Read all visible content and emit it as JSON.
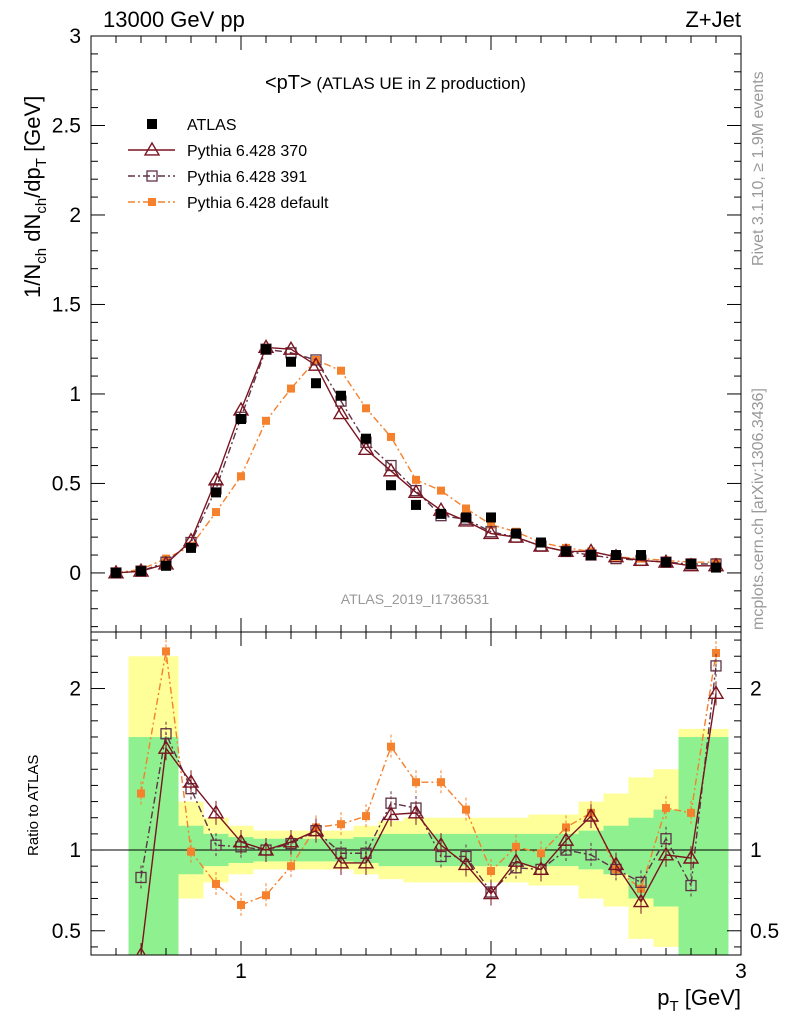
{
  "header": {
    "energy_label": "13000 GeV pp",
    "process_label": "Z+Jet",
    "plot_title_main": "<pT>",
    "plot_title_sub": " (ATLAS UE in Z production)",
    "analysis_id": "ATLAS_2019_I1736531",
    "rivet_label": "Rivet 3.1.10, ≥ 1.9M events",
    "source_label": "mcplots.cern.ch [arXiv:1306.3436]"
  },
  "colors": {
    "atlas": "#000000",
    "p370": "#7a1420",
    "p391": "#5e3346",
    "pdef": "#f5812c",
    "band_inner": "#8ff08f",
    "band_outer": "#ffff99"
  },
  "chart_data": [
    {
      "type": "scatter",
      "title": "<pT> (ATLAS UE in Z production)",
      "xlabel": "pT [GeV]",
      "ylabel": "1/Nch dNch/dpT [GeV]",
      "xlim": [
        0.4,
        3.0
      ],
      "ylim": [
        -0.33,
        3.0
      ],
      "yticks": [
        0,
        0.5,
        1,
        1.5,
        2,
        2.5,
        3
      ],
      "ytick_labels": [
        "0",
        "0.5",
        "1",
        "1.5",
        "2",
        "2.5",
        "3"
      ],
      "legend_position": "top-left",
      "x": [
        0.5,
        0.6,
        0.7,
        0.8,
        0.9,
        1.0,
        1.1,
        1.2,
        1.3,
        1.4,
        1.5,
        1.6,
        1.7,
        1.8,
        1.9,
        2.0,
        2.1,
        2.2,
        2.3,
        2.4,
        2.5,
        2.6,
        2.7,
        2.8,
        2.9
      ],
      "series": [
        {
          "name": "ATLAS",
          "key": "atlas",
          "values": [
            0.0,
            0.01,
            0.04,
            0.14,
            0.45,
            0.86,
            1.25,
            1.18,
            1.06,
            0.99,
            0.75,
            0.49,
            0.38,
            0.33,
            0.31,
            0.31,
            0.22,
            0.17,
            0.12,
            0.1,
            0.1,
            0.1,
            0.06,
            0.05,
            0.03
          ]
        },
        {
          "name": "Pythia 6.428 370",
          "key": "p370",
          "values": [
            0.0,
            0.01,
            0.05,
            0.18,
            0.52,
            0.91,
            1.26,
            1.25,
            1.16,
            0.89,
            0.69,
            0.57,
            0.45,
            0.35,
            0.29,
            0.22,
            0.2,
            0.15,
            0.12,
            0.12,
            0.09,
            0.07,
            0.06,
            0.04,
            0.04
          ]
        },
        {
          "name": "Pythia 6.428 391",
          "key": "p391",
          "values": [
            0.0,
            0.01,
            0.06,
            0.17,
            0.47,
            0.87,
            1.25,
            1.23,
            1.19,
            0.96,
            0.73,
            0.6,
            0.46,
            0.32,
            0.3,
            0.23,
            0.2,
            0.15,
            0.12,
            0.1,
            0.08,
            0.07,
            0.06,
            0.05,
            0.05
          ]
        },
        {
          "name": "Pythia 6.428 default",
          "key": "pdef",
          "values": [
            0.0,
            0.02,
            0.08,
            0.15,
            0.34,
            0.54,
            0.85,
            1.03,
            1.19,
            1.13,
            0.92,
            0.76,
            0.52,
            0.46,
            0.36,
            0.27,
            0.23,
            0.17,
            0.14,
            0.12,
            0.09,
            0.08,
            0.07,
            0.06,
            0.06
          ]
        }
      ]
    },
    {
      "type": "scatter",
      "xlabel": "pT [GeV]",
      "ylabel": "Ratio to ATLAS",
      "xlim": [
        0.4,
        3.0
      ],
      "ylim": [
        0.35,
        2.35
      ],
      "yticks": [
        0.5,
        1,
        2
      ],
      "ytick_labels": [
        "0.5",
        "1",
        "2"
      ],
      "xticks": [
        1,
        2,
        3
      ],
      "xtick_labels": [
        "1",
        "2",
        "3"
      ],
      "x": [
        0.6,
        0.7,
        0.8,
        0.9,
        1.0,
        1.1,
        1.2,
        1.3,
        1.4,
        1.5,
        1.6,
        1.7,
        1.8,
        1.9,
        2.0,
        2.1,
        2.2,
        2.3,
        2.4,
        2.5,
        2.6,
        2.7,
        2.8,
        2.9
      ],
      "band_edges": [
        0.55,
        0.65,
        0.75,
        0.85,
        0.95,
        1.05,
        1.15,
        1.25,
        1.35,
        1.45,
        1.55,
        1.65,
        1.75,
        1.85,
        1.95,
        2.05,
        2.15,
        2.25,
        2.35,
        2.45,
        2.55,
        2.65,
        2.75,
        2.85,
        2.95
      ],
      "band_inner": [
        [
          0.3,
          1.7
        ],
        [
          0.3,
          1.7
        ],
        [
          0.85,
          1.15
        ],
        [
          0.9,
          1.1
        ],
        [
          0.92,
          1.08
        ],
        [
          0.93,
          1.07
        ],
        [
          0.93,
          1.07
        ],
        [
          0.93,
          1.07
        ],
        [
          0.93,
          1.07
        ],
        [
          0.92,
          1.08
        ],
        [
          0.9,
          1.1
        ],
        [
          0.9,
          1.1
        ],
        [
          0.9,
          1.1
        ],
        [
          0.9,
          1.1
        ],
        [
          0.9,
          1.1
        ],
        [
          0.9,
          1.1
        ],
        [
          0.9,
          1.1
        ],
        [
          0.9,
          1.1
        ],
        [
          0.88,
          1.12
        ],
        [
          0.85,
          1.15
        ],
        [
          0.7,
          1.2
        ],
        [
          0.65,
          1.25
        ],
        [
          0.3,
          1.7
        ],
        [
          0.3,
          1.7
        ]
      ],
      "band_outer": [
        [
          0.3,
          2.2
        ],
        [
          0.3,
          2.2
        ],
        [
          0.7,
          1.3
        ],
        [
          0.8,
          1.2
        ],
        [
          0.85,
          1.15
        ],
        [
          0.88,
          1.12
        ],
        [
          0.88,
          1.12
        ],
        [
          0.88,
          1.12
        ],
        [
          0.88,
          1.12
        ],
        [
          0.85,
          1.15
        ],
        [
          0.82,
          1.18
        ],
        [
          0.8,
          1.2
        ],
        [
          0.8,
          1.2
        ],
        [
          0.8,
          1.2
        ],
        [
          0.8,
          1.2
        ],
        [
          0.8,
          1.2
        ],
        [
          0.78,
          1.22
        ],
        [
          0.78,
          1.22
        ],
        [
          0.7,
          1.3
        ],
        [
          0.65,
          1.35
        ],
        [
          0.45,
          1.45
        ],
        [
          0.4,
          1.5
        ],
        [
          0.3,
          1.75
        ],
        [
          0.3,
          1.75
        ]
      ],
      "series": [
        {
          "name": "Pythia 6.428 370",
          "key": "p370",
          "values": [
            0.35,
            1.63,
            1.42,
            1.23,
            1.05,
            1.0,
            1.05,
            1.12,
            0.92,
            0.92,
            1.22,
            1.23,
            1.03,
            0.91,
            0.73,
            0.93,
            0.88,
            1.06,
            1.21,
            0.91,
            0.68,
            0.97,
            0.95,
            1.97
          ]
        },
        {
          "name": "Pythia 6.428 391",
          "key": "p391",
          "values": [
            0.83,
            1.72,
            1.38,
            1.03,
            1.02,
            1.0,
            1.04,
            1.12,
            0.98,
            0.98,
            1.29,
            1.26,
            0.96,
            0.96,
            0.74,
            0.89,
            0.88,
            1.0,
            0.97,
            0.88,
            0.8,
            1.07,
            0.78,
            2.14
          ]
        },
        {
          "name": "Pythia 6.428 default",
          "key": "pdef",
          "values": [
            1.35,
            2.23,
            0.99,
            0.79,
            0.66,
            0.72,
            0.9,
            1.14,
            1.16,
            1.21,
            1.64,
            1.42,
            1.42,
            1.25,
            0.87,
            1.02,
            0.98,
            1.14,
            1.23,
            0.88,
            0.76,
            1.26,
            1.23,
            2.22
          ]
        }
      ]
    }
  ]
}
